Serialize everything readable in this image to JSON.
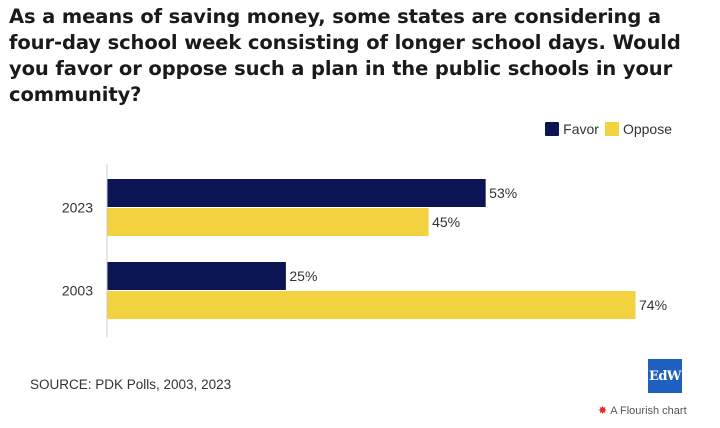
{
  "chart_data": {
    "type": "bar",
    "orientation": "horizontal",
    "title": "As a means of saving money, some states are considering a four-day school week consisting of longer school days. Would you favor or oppose such a plan in the public schools in your community?",
    "categories": [
      "2023",
      "2003"
    ],
    "series": [
      {
        "name": "Favor",
        "values": [
          53,
          25
        ],
        "labels": [
          "53%",
          "25%"
        ],
        "color": "#0c1553"
      },
      {
        "name": "Oppose",
        "values": [
          45,
          74
        ],
        "labels": [
          "45%",
          "74%"
        ],
        "color": "#f2d23e"
      }
    ],
    "xlim": [
      0,
      74
    ],
    "legend_position": "top-right",
    "grid": false
  },
  "footer": {
    "source": "SOURCE: PDK Polls, 2003, 2023",
    "logo_text": "EdW",
    "flourish_icon": "flourish-star-icon",
    "flourish_label": "A Flourish chart"
  }
}
